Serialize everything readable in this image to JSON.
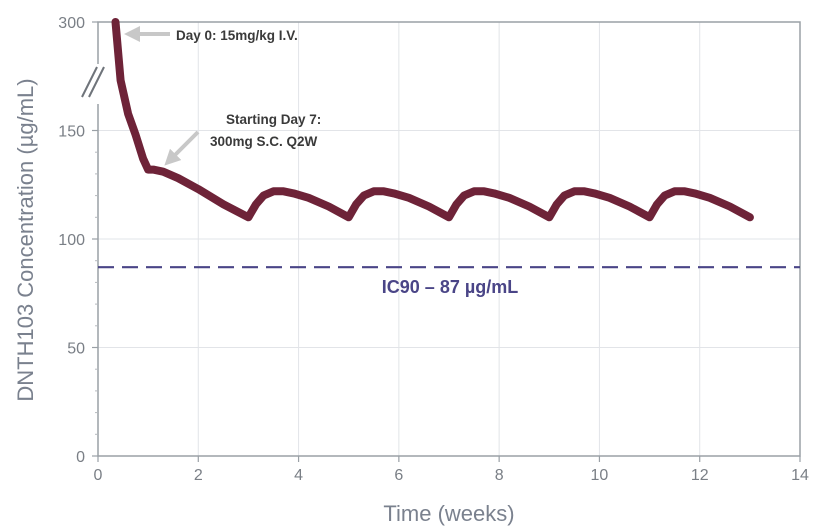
{
  "chart_data": {
    "type": "line",
    "title": "",
    "xlabel": "Time (weeks)",
    "ylabel": "DNTH103 Concentration (µg/mL)",
    "xlim": [
      0,
      14
    ],
    "ylim": [
      0,
      300
    ],
    "x_ticks": [
      0,
      2,
      4,
      6,
      8,
      10,
      12,
      14
    ],
    "y_ticks": [
      0,
      50,
      100,
      150,
      300
    ],
    "y_axis_break": true,
    "grid": true,
    "series": [
      {
        "color": "#6e2338",
        "x": [
          0.35,
          0.45,
          0.6,
          0.75,
          0.9,
          1.0,
          1.1,
          1.3,
          1.6,
          2.0,
          2.5,
          3.0,
          3.15,
          3.3,
          3.5,
          3.7,
          3.9,
          4.2,
          4.6,
          5.0,
          5.15,
          5.3,
          5.5,
          5.7,
          5.9,
          6.2,
          6.6,
          7.0,
          7.15,
          7.3,
          7.5,
          7.7,
          7.9,
          8.2,
          8.6,
          9.0,
          9.15,
          9.3,
          9.5,
          9.7,
          9.9,
          10.2,
          10.6,
          11.0,
          11.15,
          11.3,
          11.5,
          11.7,
          11.9,
          12.2,
          12.6,
          13.0
        ],
        "y": [
          300,
          210,
          170,
          148,
          137,
          132,
          132,
          131,
          128,
          123,
          116,
          110,
          116,
          120,
          122,
          122,
          121,
          119,
          115,
          110,
          116,
          120,
          122,
          122,
          121,
          119,
          115,
          110,
          116,
          120,
          122,
          122,
          121,
          119,
          115,
          110,
          116,
          120,
          122,
          122,
          121,
          119,
          115,
          110,
          116,
          120,
          122,
          122,
          121,
          119,
          115,
          110
        ]
      }
    ],
    "reference_line": {
      "y": 87,
      "label": "IC90 – 87 µg/mL",
      "style": "dashed",
      "color": "#4a4587"
    },
    "annotations": [
      {
        "text": "Day 0: 15mg/kg I.V.",
        "x": 0.35,
        "y": 300
      },
      {
        "text": "Starting Day 7:",
        "x": 1.3,
        "y": 145
      },
      {
        "text": "300mg S.C. Q2W",
        "x": 1.3,
        "y": 145
      }
    ]
  }
}
